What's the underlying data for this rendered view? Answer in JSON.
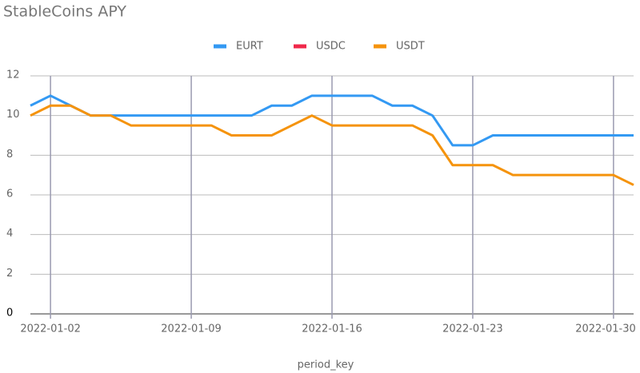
{
  "chart_data": {
    "type": "line",
    "title": "StableCoins APY",
    "x_label": "period_key",
    "x": [
      "2022-01-01",
      "2022-01-02",
      "2022-01-03",
      "2022-01-04",
      "2022-01-05",
      "2022-01-06",
      "2022-01-07",
      "2022-01-08",
      "2022-01-09",
      "2022-01-10",
      "2022-01-11",
      "2022-01-12",
      "2022-01-13",
      "2022-01-14",
      "2022-01-15",
      "2022-01-16",
      "2022-01-17",
      "2022-01-18",
      "2022-01-19",
      "2022-01-20",
      "2022-01-21",
      "2022-01-22",
      "2022-01-23",
      "2022-01-24",
      "2022-01-25",
      "2022-01-26",
      "2022-01-27",
      "2022-01-28",
      "2022-01-29",
      "2022-01-30",
      "2022-01-31"
    ],
    "series": [
      {
        "name": "EURT",
        "color": "#3399f3",
        "values": [
          10.5,
          11,
          10.5,
          10,
          10,
          10,
          10,
          10,
          10,
          10,
          10,
          10,
          10.5,
          10.5,
          11,
          11,
          11,
          11,
          10.5,
          10.5,
          10,
          8.5,
          8.5,
          9,
          9,
          9,
          9,
          9,
          9,
          9,
          9
        ]
      },
      {
        "name": "USDC",
        "color": "#f0284a",
        "values": [
          null,
          null,
          null,
          null,
          null,
          null,
          null,
          null,
          null,
          null,
          null,
          null,
          null,
          null,
          null,
          null,
          null,
          null,
          null,
          null,
          null,
          null,
          null,
          null,
          null,
          null,
          null,
          null,
          null,
          null,
          null
        ]
      },
      {
        "name": "USDT",
        "color": "#f5930c",
        "values": [
          10,
          10.5,
          10.5,
          10,
          10,
          9.5,
          9.5,
          9.5,
          9.5,
          9.5,
          9,
          9,
          9,
          9.5,
          10,
          9.5,
          9.5,
          9.5,
          9.5,
          9.5,
          9,
          7.5,
          7.5,
          7.5,
          7,
          7,
          7,
          7,
          7,
          7,
          6.5
        ]
      }
    ],
    "xlim": [
      "2022-01-01",
      "2022-01-31"
    ],
    "xticks": [
      "2022-01-02",
      "2022-01-09",
      "2022-01-16",
      "2022-01-23",
      "2022-01-30"
    ],
    "ylim": [
      0,
      12
    ],
    "yticks": [
      0,
      2,
      4,
      6,
      8,
      10,
      12
    ],
    "grid": true,
    "legend": "top"
  }
}
